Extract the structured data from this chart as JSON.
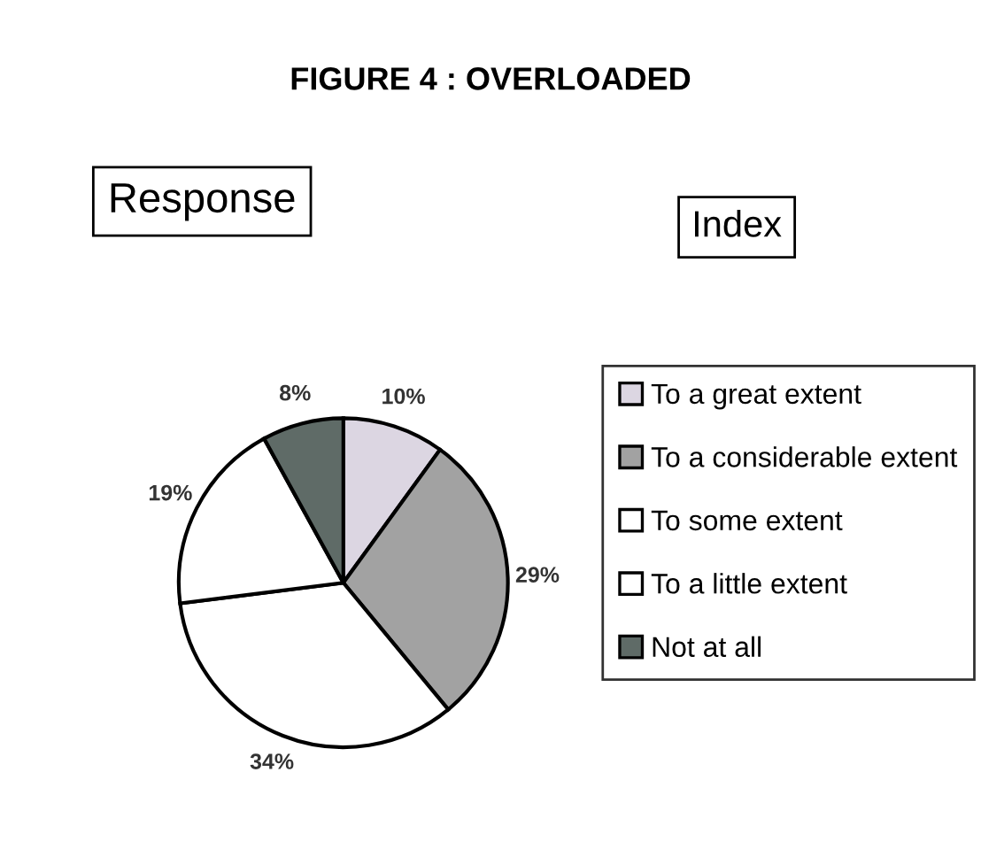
{
  "chart_data": {
    "type": "pie",
    "title": "FIGURE 4 : OVERLOADED",
    "annotations": [
      "Response",
      "Index"
    ],
    "categories": [
      "To a great extent",
      "To a considerable extent",
      "To some extent",
      "To a little extent",
      "Not at all"
    ],
    "values": [
      10,
      29,
      34,
      19,
      8
    ],
    "value_labels": [
      "10%",
      "29%",
      "34%",
      "19%",
      "8%"
    ],
    "colors": [
      "#dcd6e2",
      "#a2a2a2",
      "#ffffff",
      "#ffffff",
      "#5f6b67"
    ],
    "legend": "right"
  }
}
